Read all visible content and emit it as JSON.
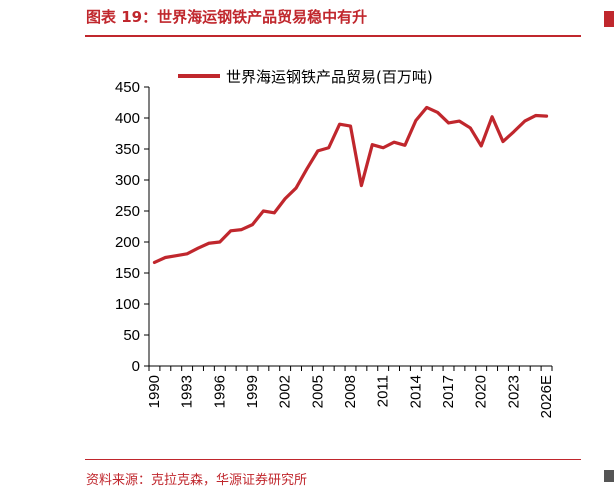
{
  "figure": {
    "title": "图表 19：世界海运钢铁产品贸易稳中有升",
    "source": "资料来源：克拉克森，华源证券研究所"
  },
  "chart_data": {
    "type": "line",
    "title": "",
    "xlabel": "",
    "ylabel": "",
    "ylim": [
      0,
      450
    ],
    "yticks": [
      0,
      50,
      100,
      150,
      200,
      250,
      300,
      350,
      400,
      450
    ],
    "xtick_labels": [
      "1990",
      "1993",
      "1996",
      "1999",
      "2002",
      "2005",
      "2008",
      "2011",
      "2014",
      "2017",
      "2020",
      "2023",
      "2026E"
    ],
    "legend_position": "top",
    "grid": false,
    "x": [
      "1990",
      "1991",
      "1992",
      "1993",
      "1994",
      "1995",
      "1996",
      "1997",
      "1998",
      "1999",
      "2000",
      "2001",
      "2002",
      "2003",
      "2004",
      "2005",
      "2006",
      "2007",
      "2008",
      "2009",
      "2010",
      "2011",
      "2012",
      "2013",
      "2014",
      "2015",
      "2016",
      "2017",
      "2018",
      "2019",
      "2020",
      "2021",
      "2022",
      "2023",
      "2024",
      "2025",
      "2026E"
    ],
    "series": [
      {
        "name": "世界海运钢铁产品贸易(百万吨)",
        "color": "#c0272d",
        "values": [
          167,
          175,
          178,
          181,
          190,
          198,
          200,
          218,
          220,
          228,
          250,
          247,
          270,
          287,
          318,
          347,
          352,
          390,
          387,
          291,
          357,
          352,
          361,
          356,
          396,
          417,
          409,
          392,
          395,
          384,
          355,
          402,
          362,
          378,
          395,
          404,
          403
        ]
      }
    ]
  }
}
